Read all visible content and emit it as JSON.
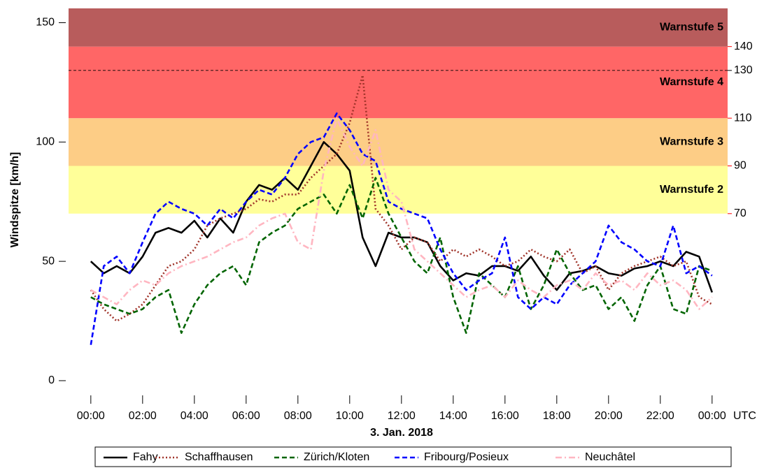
{
  "chart_data": {
    "type": "line",
    "ylabel": "Windspitze [km/h]",
    "xlabel": "3. Jan. 2018",
    "x_unit": "UTC",
    "x": [
      0,
      0.5,
      1,
      1.5,
      2,
      2.5,
      3,
      3.5,
      4,
      4.5,
      5,
      5.5,
      6,
      6.5,
      7,
      7.5,
      8,
      8.5,
      9,
      9.5,
      10,
      10.5,
      11,
      11.5,
      12,
      12.5,
      13,
      13.5,
      14,
      14.5,
      15,
      15.5,
      16,
      16.5,
      17,
      17.5,
      18,
      18.5,
      19,
      19.5,
      20,
      20.5,
      21,
      21.5,
      22,
      22.5,
      23,
      23.5,
      24
    ],
    "xlim": [
      -0.86,
      24.6
    ],
    "xticks": [
      {
        "value": 0,
        "label": "00:00"
      },
      {
        "value": 2,
        "label": "02:00"
      },
      {
        "value": 4,
        "label": "04:00"
      },
      {
        "value": 6,
        "label": "06:00"
      },
      {
        "value": 8,
        "label": "08:00"
      },
      {
        "value": 10,
        "label": "10:00"
      },
      {
        "value": 12,
        "label": "12:00"
      },
      {
        "value": 14,
        "label": "14:00"
      },
      {
        "value": 16,
        "label": "16:00"
      },
      {
        "value": 18,
        "label": "18:00"
      },
      {
        "value": 20,
        "label": "20:00"
      },
      {
        "value": 22,
        "label": "22:00"
      },
      {
        "value": 24,
        "label": "00:00"
      }
    ],
    "ylim": [
      -4.4,
      156
    ],
    "yticks": [
      0,
      50,
      100,
      150
    ],
    "bands": [
      {
        "from": 70,
        "to": 90,
        "label": "Warnstufe 2",
        "color": "#ffff99"
      },
      {
        "from": 90,
        "to": 110,
        "label": "Warnstufe 3",
        "color": "#fdcd86"
      },
      {
        "from": 110,
        "to": 140,
        "label": "Warnstufe 4",
        "color": "#ff6666"
      },
      {
        "from": 140,
        "to": 156,
        "label": "Warnstufe 5",
        "color": "#b85c5c"
      }
    ],
    "threshold_labels": [
      70,
      90,
      110,
      140
    ],
    "threshold_color": "#ff0000",
    "reference_line": 130,
    "series": [
      {
        "name": "Fahy",
        "color": "#000000",
        "linestyle": "solid",
        "values": [
          50,
          45,
          48,
          45,
          52,
          62,
          64,
          62,
          67,
          60,
          68,
          62,
          75,
          82,
          80,
          85,
          80,
          90,
          100,
          95,
          88,
          60,
          48,
          62,
          60,
          60,
          58,
          48,
          42,
          45,
          44,
          48,
          48,
          46,
          52,
          44,
          38,
          45,
          46,
          48,
          45,
          44,
          47,
          48,
          50,
          48,
          54,
          52,
          37
        ]
      },
      {
        "name": "Schaffhausen",
        "color": "#a0342a",
        "linestyle": "dotted",
        "values": [
          38,
          30,
          25,
          28,
          32,
          40,
          48,
          50,
          55,
          65,
          68,
          70,
          72,
          76,
          75,
          78,
          78,
          85,
          90,
          95,
          108,
          128,
          72,
          65,
          55,
          60,
          58,
          50,
          55,
          52,
          55,
          52,
          48,
          50,
          55,
          52,
          50,
          55,
          45,
          48,
          38,
          45,
          48,
          50,
          52,
          48,
          50,
          35,
          32
        ]
      },
      {
        "name": "Zürich/Kloten",
        "color": "#006400",
        "linestyle": "dashed",
        "values": [
          35,
          32,
          30,
          28,
          30,
          35,
          38,
          20,
          32,
          40,
          45,
          48,
          40,
          58,
          62,
          65,
          72,
          75,
          78,
          70,
          82,
          68,
          85,
          70,
          60,
          50,
          45,
          60,
          35,
          20,
          45,
          40,
          35,
          48,
          30,
          40,
          55,
          45,
          38,
          40,
          30,
          35,
          25,
          40,
          48,
          30,
          28,
          48,
          46
        ]
      },
      {
        "name": "Fribourg/Posieux",
        "color": "#0000ff",
        "linestyle": "dashed",
        "values": [
          15,
          48,
          52,
          45,
          58,
          70,
          75,
          72,
          70,
          65,
          72,
          68,
          75,
          80,
          78,
          85,
          95,
          100,
          102,
          112,
          105,
          95,
          92,
          75,
          72,
          70,
          68,
          55,
          45,
          38,
          42,
          45,
          60,
          35,
          30,
          35,
          32,
          40,
          45,
          50,
          65,
          58,
          55,
          50,
          48,
          65,
          45,
          48,
          44
        ]
      },
      {
        "name": "Neuchâtel",
        "color": "#ffb6c1",
        "linestyle": "dashdot",
        "values": [
          38,
          35,
          32,
          38,
          42,
          40,
          45,
          48,
          50,
          52,
          55,
          58,
          60,
          65,
          68,
          70,
          58,
          55,
          88,
          110,
          98,
          90,
          105,
          80,
          75,
          55,
          50,
          45,
          40,
          35,
          38,
          40,
          35,
          42,
          38,
          35,
          40,
          42,
          38,
          45,
          40,
          42,
          38,
          45,
          40,
          42,
          38,
          30,
          35
        ]
      }
    ]
  }
}
